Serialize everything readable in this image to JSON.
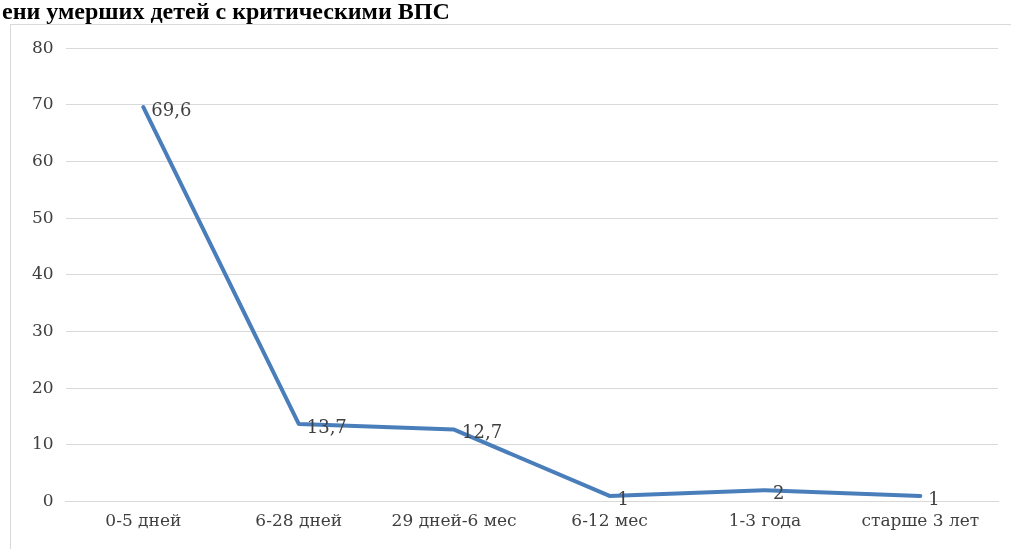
{
  "chart_data": {
    "type": "line",
    "title": "ени умерших детей с критическими ВПС",
    "categories": [
      "0-5 дней",
      "6-28 дней",
      "29 дней-6 мес",
      "6-12 мес",
      "1-3 года",
      "старше 3 лет"
    ],
    "series": [
      {
        "color": "#4a7ebb",
        "values": [
          69.6,
          13.7,
          12.7,
          1,
          2,
          1
        ],
        "value_labels": [
          "69,6",
          "13,7",
          "12,7",
          "1",
          "2",
          "1"
        ]
      }
    ],
    "ylim": [
      0,
      80
    ],
    "yticks": [
      0,
      10,
      20,
      30,
      40,
      50,
      60,
      70,
      80
    ],
    "grid": "y",
    "legend": false,
    "marker": "none",
    "line_style": "solid"
  }
}
